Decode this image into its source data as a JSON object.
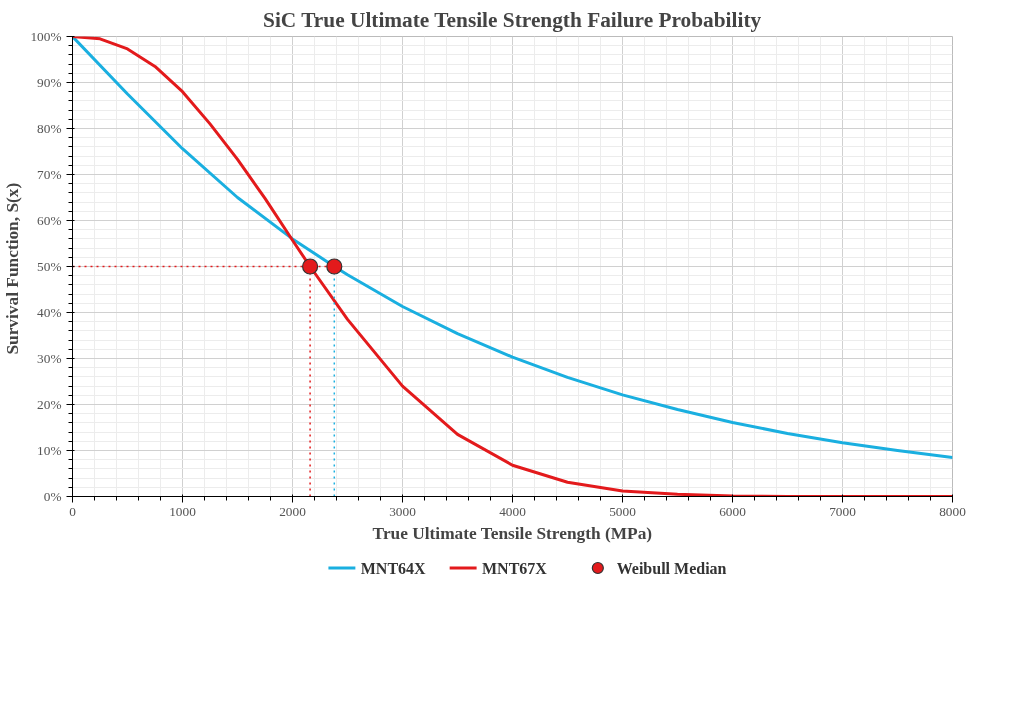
{
  "chart_data": {
    "type": "line",
    "title": "SiC True Ultimate Tensile Strength Failure Probability",
    "xlabel": "True Ultimate Tensile Strength (MPa)",
    "ylabel": "Survival Function,  S(x)",
    "xlim": [
      0,
      8000
    ],
    "xticks": [
      0,
      1000,
      2000,
      3000,
      4000,
      5000,
      6000,
      7000,
      8000
    ],
    "ylim": [
      0,
      100
    ],
    "yticks": [
      {
        "value": 0,
        "label": "0%"
      },
      {
        "value": 10,
        "label": "10%"
      },
      {
        "value": 20,
        "label": "20%"
      },
      {
        "value": 30,
        "label": "30%"
      },
      {
        "value": 40,
        "label": "40%"
      },
      {
        "value": 50,
        "label": "50%"
      },
      {
        "value": 60,
        "label": "60%"
      },
      {
        "value": 70,
        "label": "70%"
      },
      {
        "value": 80,
        "label": "80%"
      },
      {
        "value": 90,
        "label": "90%"
      },
      {
        "value": 100,
        "label": "100%"
      }
    ],
    "grid": true,
    "legend": "bottom",
    "series": [
      {
        "name": "MNT64X",
        "color": "#1aafe0",
        "x": [
          0,
          500,
          1000,
          1500,
          2000,
          2380,
          2500,
          3000,
          3500,
          4000,
          4500,
          5000,
          5500,
          6000,
          6500,
          7000,
          7500,
          8000
        ],
        "values": [
          100,
          87.5,
          75.6,
          65,
          56,
          50,
          48.2,
          41.3,
          35.4,
          30.3,
          25.9,
          22.1,
          18.9,
          16.1,
          13.7,
          11.7,
          10,
          8.5
        ]
      },
      {
        "name": "MNT67X",
        "color": "#e31a1c",
        "x": [
          0,
          250,
          500,
          750,
          1000,
          1250,
          1500,
          1750,
          2000,
          2160,
          2500,
          3000,
          3500,
          4000,
          4500,
          5000,
          5500,
          6000,
          6500,
          7000,
          8000
        ],
        "values": [
          100,
          99.5,
          97.3,
          93.5,
          88,
          81,
          73.3,
          64.8,
          55.7,
          50,
          38.5,
          24,
          13.5,
          6.8,
          3.1,
          1.2,
          0.5,
          0.1,
          0,
          0,
          0
        ]
      },
      {
        "color": "#e31a1c",
        "line_style": "dotted",
        "x": [
          0,
          2380
        ],
        "values": [
          50,
          50
        ]
      },
      {
        "color": "#e31a1c",
        "line_style": "dotted",
        "x": [
          2160,
          2160
        ],
        "values": [
          0,
          50
        ]
      },
      {
        "color": "#1aafe0",
        "line_style": "dotted",
        "x": [
          2380,
          2380
        ],
        "values": [
          0,
          50
        ]
      },
      {
        "name": "Weibull Median",
        "type": "scatter",
        "marker": "circle",
        "color": "#e31a1c",
        "x": [
          2160,
          2380
        ],
        "values": [
          50,
          50
        ]
      }
    ]
  }
}
